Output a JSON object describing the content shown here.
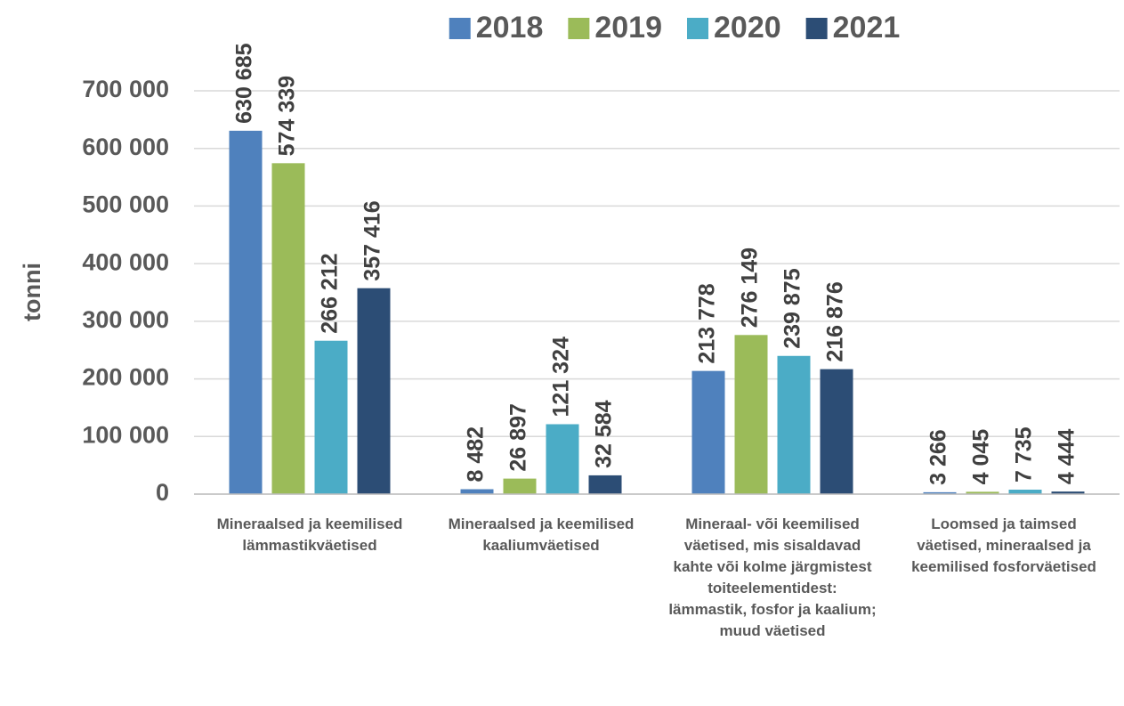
{
  "chart_data": {
    "type": "bar",
    "y_label": "tonni",
    "categories": [
      "Mineraalsed ja keemilised lämmastikväetised",
      "Mineraalsed ja keemilised kaaliumväetised",
      "Mineraal- või keemilised väetised, mis sisaldavad kahte või kolme järgmistest toiteelementidest: lämmastik, fosfor ja kaalium; muud väetised",
      "Loomsed ja taimsed väetised, mineraalsed ja keemilised fosforväetised"
    ],
    "series": [
      {
        "name": "2018",
        "color": "#4f81bd",
        "values": [
          630685,
          8482,
          213778,
          3266
        ],
        "value_labels": [
          "630 685",
          "8 482",
          "213 778",
          "3 266"
        ]
      },
      {
        "name": "2019",
        "color": "#9bbb59",
        "values": [
          574339,
          26897,
          276149,
          4045
        ],
        "value_labels": [
          "574 339",
          "26 897",
          "276 149",
          "4 045"
        ]
      },
      {
        "name": "2020",
        "color": "#4bacc6",
        "values": [
          266212,
          121324,
          239875,
          7735
        ],
        "value_labels": [
          "266 212",
          "121 324",
          "239 875",
          "7 735"
        ]
      },
      {
        "name": "2021",
        "color": "#2c4d75",
        "values": [
          357416,
          32584,
          216876,
          4444
        ],
        "value_labels": [
          "357 416",
          "32 584",
          "216 876",
          "4 444"
        ]
      }
    ],
    "ylim": [
      0,
      700000
    ],
    "yticks": [
      0,
      {
        "value": 100000,
        "label": "100 000"
      },
      {
        "value": 200000,
        "label": "200 000"
      },
      {
        "value": 300000,
        "label": "300 000"
      },
      {
        "value": 400000,
        "label": "400 000"
      },
      {
        "value": 500000,
        "label": "500 000"
      },
      {
        "value": 600000,
        "label": "600 000"
      },
      {
        "value": 700000,
        "label": "700 000"
      }
    ],
    "grid": true,
    "legend": "top"
  }
}
